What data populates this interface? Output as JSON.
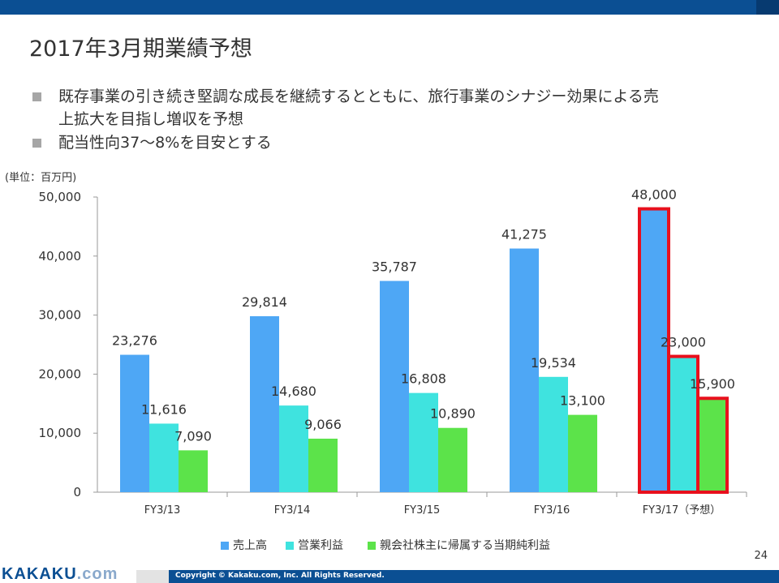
{
  "slide": {
    "title": "2017年3月期業績予想",
    "bullets": [
      {
        "line1": "既存事業の引き続き堅調な成長を継続するとともに、旅行事業のシナジー効果による売",
        "line2": "上拡大を目指し増収を予想"
      },
      {
        "line1": "配当性向37～8%を目安とする",
        "line2": ""
      }
    ],
    "unit_label": "(単位：百万円)",
    "page_number": "24"
  },
  "footer": {
    "logo_main": "KAKAKU",
    "logo_suffix": ".com",
    "copyright": "Copyright © Kakaku.com, Inc. All Rights Reserved."
  },
  "colors": {
    "header_blue": "#0b4f93",
    "sales": "#4ea7f5",
    "operating_income": "#3fe3df",
    "net_income": "#5ce34a",
    "highlight": "#e8101d"
  },
  "chart_data": {
    "type": "bar",
    "title": "",
    "xlabel": "",
    "ylabel": "",
    "unit": "(単位：百万円)",
    "categories": [
      "FY3/13",
      "FY3/14",
      "FY3/15",
      "FY3/16",
      "FY3/17（予想）"
    ],
    "series": [
      {
        "name": "売上高",
        "color": "#4ea7f5",
        "values": [
          23276,
          29814,
          35787,
          41275,
          48000
        ],
        "labels": [
          "23,276",
          "29,814",
          "35,787",
          "41,275",
          "48,000"
        ]
      },
      {
        "name": "営業利益",
        "color": "#3fe3df",
        "values": [
          11616,
          14680,
          16808,
          19534,
          23000
        ],
        "labels": [
          "11,616",
          "14,680",
          "16,808",
          "19,534",
          "23,000"
        ]
      },
      {
        "name": "親会社株主に帰属する当期純利益",
        "color": "#5ce34a",
        "values": [
          7090,
          9066,
          10890,
          13100,
          15900
        ],
        "labels": [
          "7,090",
          "9,066",
          "10,890",
          "13,100",
          "15,900"
        ]
      }
    ],
    "ylim": [
      0,
      50000
    ],
    "yticks": [
      0,
      10000,
      20000,
      30000,
      40000,
      50000
    ],
    "ytick_labels": [
      "0",
      "10,000",
      "20,000",
      "30,000",
      "40,000",
      "50,000"
    ],
    "grid": false,
    "legend": "bottom",
    "highlighted_category": "FY3/17（予想）"
  }
}
